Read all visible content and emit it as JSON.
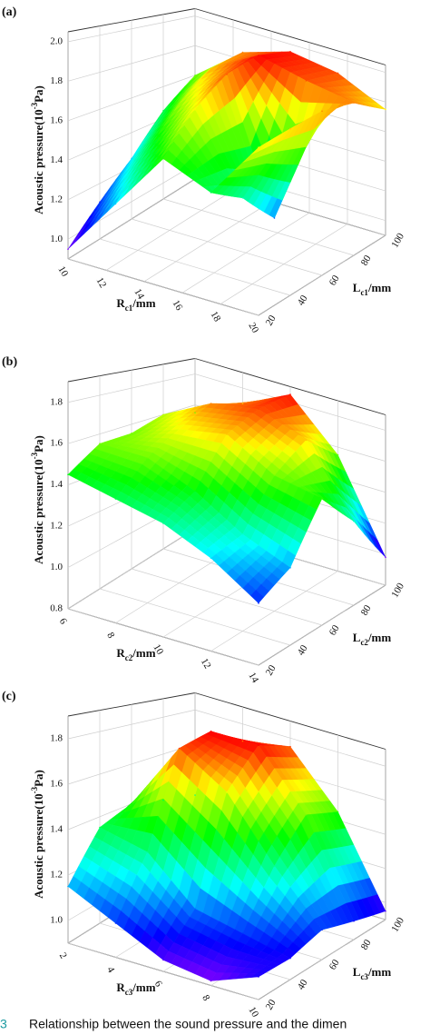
{
  "chart_data": [
    {
      "type": "surface",
      "panel": "(a)",
      "xlabel": {
        "main": "R",
        "sub": "c1",
        "unit": "/mm"
      },
      "ylabel": {
        "main": "L",
        "sub": "c1",
        "unit": "/mm"
      },
      "zlabel": {
        "main": "Acoustic pressure(10",
        "sup": "-3",
        "unit": "Pa)"
      },
      "x": [
        10,
        12.5,
        15,
        17.5,
        20
      ],
      "y": [
        20,
        40,
        60,
        80,
        100
      ],
      "z": [
        [
          0.95,
          1.25,
          1.55,
          1.45,
          1.75
        ],
        [
          1.1,
          1.45,
          1.75,
          1.35,
          1.8
        ],
        [
          1.25,
          1.65,
          1.9,
          1.15,
          1.85
        ],
        [
          1.45,
          1.8,
          1.97,
          1.9,
          1.85
        ],
        [
          1.6,
          1.85,
          1.95,
          1.9,
          1.75
        ]
      ],
      "xlim": [
        10,
        20
      ],
      "xticks": [
        10,
        12,
        14,
        16,
        18,
        20
      ],
      "ylim": [
        20,
        100
      ],
      "yticks": [
        20,
        40,
        60,
        80,
        100
      ],
      "zlim": [
        0.9,
        2.05
      ],
      "zticks": [
        {
          "value": 1,
          "label": "1.0"
        },
        1.2,
        1.4,
        1.6,
        1.8,
        {
          "value": 2,
          "label": "2.0"
        }
      ]
    },
    {
      "type": "surface",
      "panel": "(b)",
      "xlabel": {
        "main": "R",
        "sub": "c2",
        "unit": "/mm"
      },
      "ylabel": {
        "main": "L",
        "sub": "c2",
        "unit": "/mm"
      },
      "zlabel": {
        "main": "Acoustic pressure(10",
        "sup": "-3",
        "unit": "Pa)"
      },
      "x": [
        6,
        8,
        10,
        12,
        14
      ],
      "y": [
        20,
        40,
        60,
        80,
        100
      ],
      "z": [
        [
          1.45,
          1.4,
          1.35,
          1.25,
          1.1
        ],
        [
          1.55,
          1.55,
          1.45,
          1.3,
          1.2
        ],
        [
          1.55,
          1.65,
          1.7,
          1.55,
          1.5
        ],
        [
          1.6,
          1.75,
          1.8,
          1.7,
          1.3
        ],
        [
          1.55,
          1.7,
          1.85,
          1.55,
          0.98
        ]
      ],
      "xlim": [
        6,
        14
      ],
      "xticks": [
        6,
        8,
        10,
        12,
        14
      ],
      "ylim": [
        20,
        100
      ],
      "yticks": [
        20,
        40,
        60,
        80,
        100
      ],
      "zlim": [
        0.8,
        1.9
      ],
      "zticks": [
        0.8,
        {
          "value": 1,
          "label": "1.0"
        },
        1.2,
        1.4,
        1.6,
        1.8
      ]
    },
    {
      "type": "surface",
      "panel": "(c)",
      "xlabel": {
        "main": "R",
        "sub": "c3",
        "unit": "/mm"
      },
      "ylabel": {
        "main": "L",
        "sub": "c3",
        "unit": "/mm"
      },
      "zlabel": {
        "main": "Acoustic pressure(10",
        "sup": "-3",
        "unit": "Pa)"
      },
      "x": [
        2,
        4,
        6,
        8,
        10
      ],
      "y": [
        20,
        40,
        60,
        80,
        100
      ],
      "z": [
        [
          1.15,
          1.05,
          0.95,
          0.92,
          1.0
        ],
        [
          1.35,
          1.3,
          1.1,
          1.05,
          1.0
        ],
        [
          1.4,
          1.75,
          1.6,
          1.3,
          1.05
        ],
        [
          1.35,
          1.8,
          1.8,
          1.5,
          1.0
        ],
        [
          1.3,
          1.7,
          1.75,
          1.45,
          0.95
        ]
      ],
      "xlim": [
        2,
        10
      ],
      "xticks": [
        2,
        4,
        6,
        8,
        10
      ],
      "ylim": [
        20,
        100
      ],
      "yticks": [
        20,
        40,
        60,
        80,
        100
      ],
      "zlim": [
        0.9,
        1.9
      ],
      "zticks": [
        {
          "value": 1,
          "label": "1.0"
        },
        1.2,
        1.4,
        1.6,
        1.8
      ]
    }
  ],
  "caption": {
    "number": "3",
    "text": "Relationship between the sound pressure and the dimen"
  }
}
